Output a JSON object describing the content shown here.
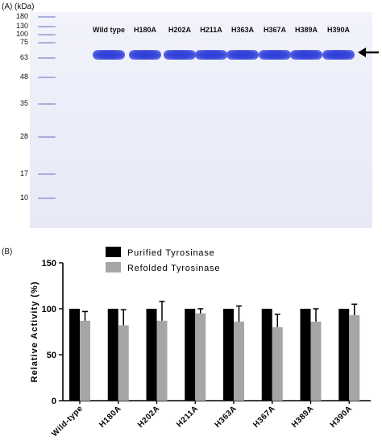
{
  "panel_a": {
    "label": "(A)",
    "unit": "(kDa)",
    "markers": [
      "180",
      "130",
      "100",
      "75",
      "63",
      "48",
      "35",
      "28",
      "17",
      "10"
    ],
    "lanes": [
      "Wild type",
      "H180A",
      "H202A",
      "H211A",
      "H363A",
      "H367A",
      "H389A",
      "H390A"
    ],
    "colors": {
      "band": "#2b3bd2",
      "gel": "#eceef9"
    },
    "arrow_icon": "arrow-left-icon"
  },
  "panel_b": {
    "label": "(B)"
  },
  "chart_data": {
    "type": "bar",
    "categories": [
      "Wild-type",
      "H180A",
      "H202A",
      "H211A",
      "H363A",
      "H367A",
      "H389A",
      "H390A"
    ],
    "series": [
      {
        "name": "Purified Tyrosinase",
        "color": "#000000",
        "values": [
          100,
          100,
          100,
          100,
          100,
          100,
          100,
          100
        ],
        "errors": [
          0,
          0,
          0,
          0,
          0,
          0,
          0,
          0
        ]
      },
      {
        "name": "Refolded Tyrosinase",
        "color": "#a6a6a6",
        "values": [
          87,
          82,
          87,
          95,
          86,
          80,
          86,
          93
        ],
        "errors": [
          10,
          17,
          21,
          5,
          17,
          14,
          14,
          12
        ]
      }
    ],
    "ylabel": "Relative Activity (%)",
    "xlabel": "",
    "ylim": [
      0,
      150
    ],
    "yticks": [
      0,
      50,
      100,
      150
    ],
    "legend_position": "top-center",
    "grid": false
  }
}
